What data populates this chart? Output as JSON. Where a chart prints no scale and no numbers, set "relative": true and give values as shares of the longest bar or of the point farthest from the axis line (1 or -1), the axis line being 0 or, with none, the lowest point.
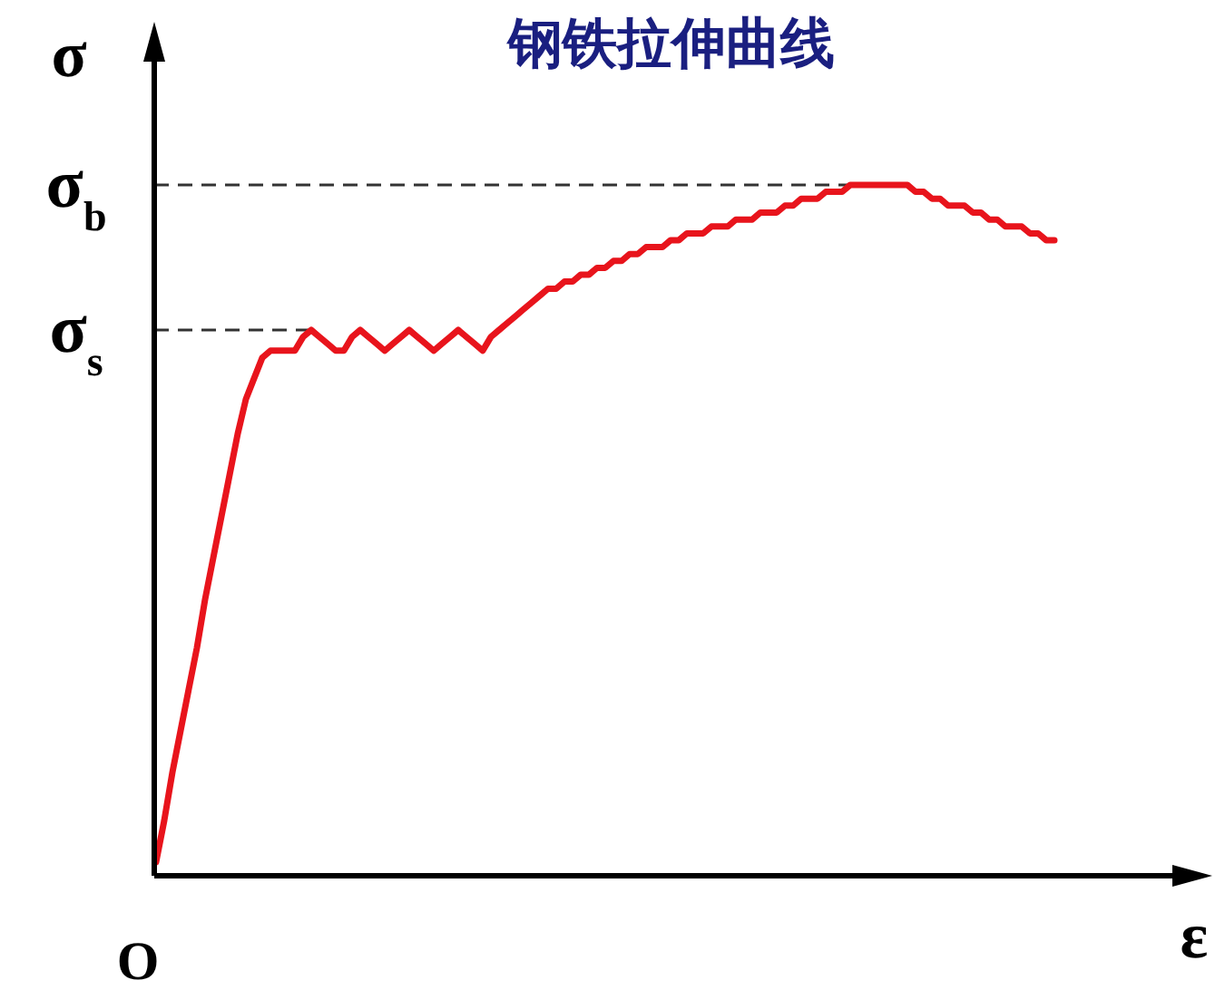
{
  "chart_data": {
    "type": "line",
    "title": "钢铁拉伸曲线",
    "xlabel": "ε",
    "ylabel": "σ",
    "relative": true,
    "categories": [
      null,
      null,
      null,
      null,
      null,
      null,
      null,
      null,
      null,
      null,
      null,
      null,
      null,
      null,
      null,
      null,
      null,
      null,
      null,
      null,
      null,
      null,
      null,
      null,
      null,
      null,
      null,
      null,
      null,
      null,
      null,
      null,
      null,
      null,
      null,
      null,
      null,
      null,
      null,
      null,
      null,
      null,
      null,
      null,
      null,
      null,
      null,
      null,
      null,
      null,
      null,
      null,
      null,
      null,
      null,
      null,
      null,
      null,
      null,
      null,
      null,
      null,
      null,
      null,
      null,
      null,
      null,
      null,
      null,
      null,
      null,
      null,
      null,
      null,
      null,
      null,
      null,
      null,
      null,
      null,
      null,
      null,
      null,
      null,
      null,
      null,
      null,
      null,
      null,
      null,
      null,
      null,
      null,
      null,
      null,
      null,
      null,
      null,
      null,
      null,
      null,
      null,
      null,
      null,
      null,
      null,
      null,
      null,
      null,
      null,
      null
    ],
    "series": [
      {
        "color": "#e8141c",
        "values": [
          0.02,
          0.08,
          0.15,
          0.21,
          0.27,
          0.33,
          0.4,
          0.46,
          0.52,
          0.58,
          0.64,
          0.69,
          0.72,
          0.75,
          0.76,
          0.76,
          0.76,
          0.76,
          0.78,
          0.79,
          0.78,
          0.77,
          0.76,
          0.76,
          0.78,
          0.79,
          0.78,
          0.77,
          0.76,
          0.77,
          0.78,
          0.79,
          0.78,
          0.77,
          0.76,
          0.77,
          0.78,
          0.79,
          0.78,
          0.77,
          0.76,
          0.78,
          0.79,
          0.8,
          0.81,
          0.82,
          0.83,
          0.84,
          0.85,
          0.85,
          0.86,
          0.86,
          0.87,
          0.87,
          0.88,
          0.88,
          0.89,
          0.89,
          0.9,
          0.9,
          0.91,
          0.91,
          0.91,
          0.92,
          0.92,
          0.93,
          0.93,
          0.93,
          0.94,
          0.94,
          0.94,
          0.95,
          0.95,
          0.95,
          0.96,
          0.96,
          0.96,
          0.97,
          0.97,
          0.98,
          0.98,
          0.98,
          0.99,
          0.99,
          0.99,
          1.0,
          1.0,
          1.0,
          1.0,
          1.0,
          1.0,
          1.0,
          1.0,
          0.99,
          0.99,
          0.98,
          0.98,
          0.97,
          0.97,
          0.97,
          0.96,
          0.96,
          0.95,
          0.95,
          0.94,
          0.94,
          0.94,
          0.93,
          0.93,
          0.92,
          0.92
        ]
      }
    ],
    "ref_lines": [
      {
        "axis": "y",
        "value": 1.0,
        "label": "σ$_{b}$",
        "line_style": "dashed",
        "color": "#333333"
      },
      {
        "axis": "y",
        "value": 0.79,
        "label": "σ$_{s}$",
        "line_style": "dashed",
        "color": "#333333"
      }
    ],
    "annotations": [
      "O"
    ]
  }
}
